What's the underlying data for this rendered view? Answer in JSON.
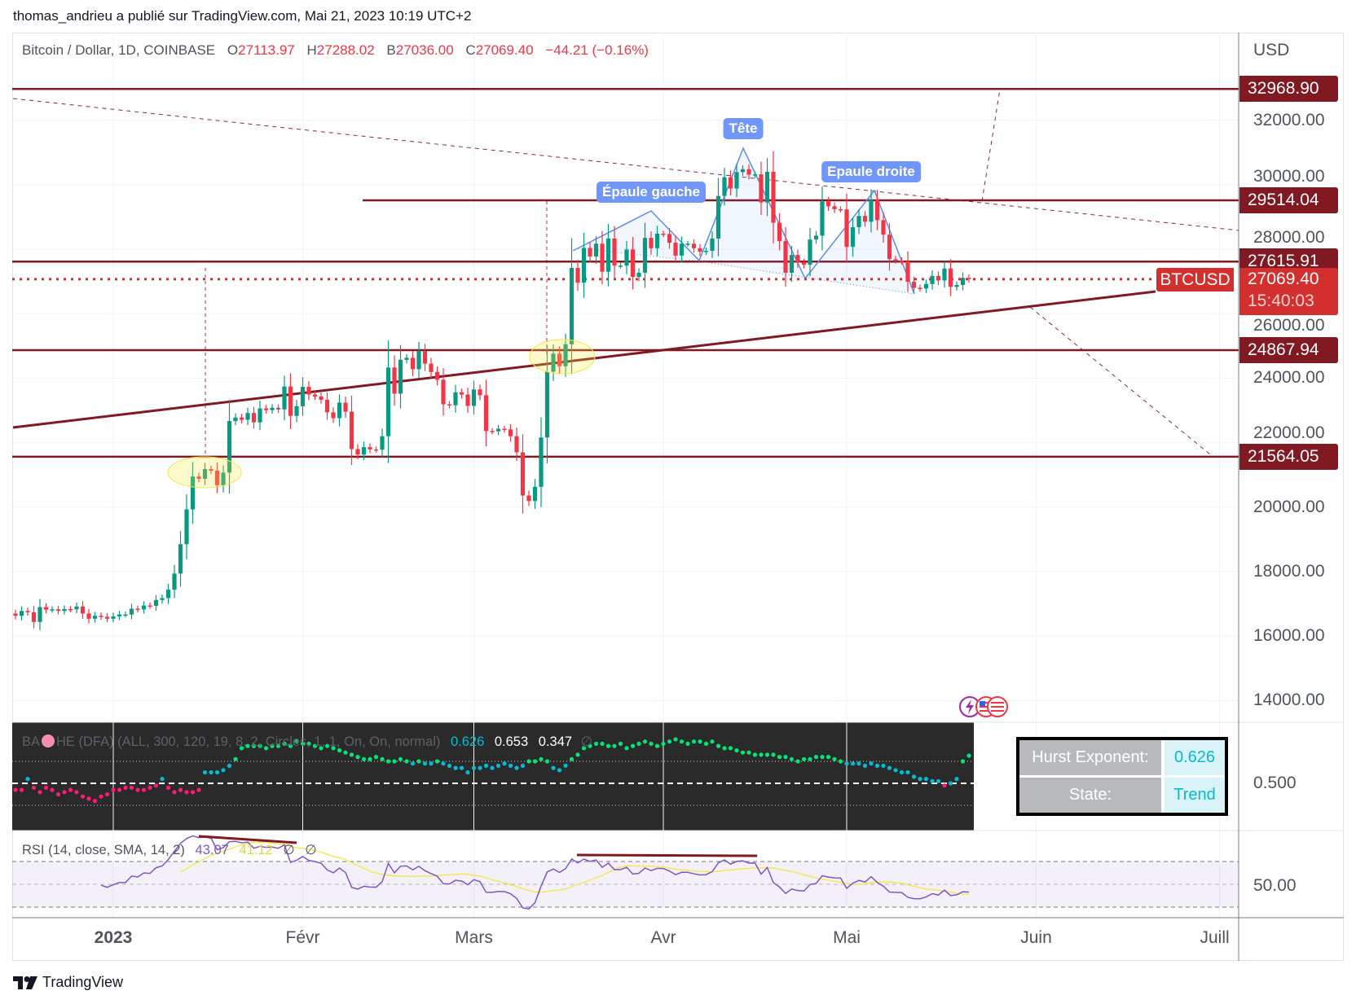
{
  "publisher": "thomas_andrieu a publié sur TradingView.com, Mai 21, 2023 10:19 UTC+2",
  "legend": {
    "symbol": "Bitcoin / Dollar, 1D, COINBASE",
    "o_label": "O",
    "o": "27113.97",
    "h_label": "H",
    "h": "27288.02",
    "b_label": "B",
    "b": "27036.00",
    "c_label": "C",
    "c": "27069.40",
    "change": "−44.21 (−0.16%)"
  },
  "currency": "USD",
  "colors": {
    "up": "#089981",
    "down": "#f23645",
    "level": "#801922",
    "pattern": "#5b8def",
    "current": "#d32f2f",
    "hurst_low": "#ff1a75",
    "hurst_mid": "#00bcd4",
    "hurst_high": "#00e676",
    "rsi": "#7e57c2",
    "rsi_sma": "#f5e642"
  },
  "price_axis": {
    "ticks": [
      "14000.00",
      "16000.00",
      "18000.00",
      "20000.00",
      "22000.00",
      "24000.00",
      "26000.00",
      "28000.00",
      "30000.00",
      "32000.00"
    ]
  },
  "levels": [
    {
      "label": "32968.90",
      "value": 32968.9
    },
    {
      "label": "29514.04",
      "value": 29514.04
    },
    {
      "label": "27615.91",
      "value": 27615.91
    },
    {
      "label": "24867.94",
      "value": 24867.94
    },
    {
      "label": "21564.05",
      "value": 21564.05
    }
  ],
  "current": {
    "symbol": "BTCUSD",
    "price": "27069.40",
    "value": 27069.4,
    "countdown": "15:40:03"
  },
  "pattern_labels": {
    "head": "Tête",
    "left_shoulder": "Épaule gauche",
    "right_shoulder": "Epaule droite"
  },
  "time_axis": [
    {
      "label": "2023",
      "date": "2023-01-01"
    },
    {
      "label": "Févr",
      "date": "2023-02-01"
    },
    {
      "label": "Mars",
      "date": "2023-03-01"
    },
    {
      "label": "Avr",
      "date": "2023-04-01"
    },
    {
      "label": "Mai",
      "date": "2023-05-01"
    },
    {
      "label": "Juin",
      "date": "2023-06-01"
    },
    {
      "label": "Juill",
      "date": "2023-07-01"
    }
  ],
  "hurst": {
    "legend_prefix": "BA",
    "legend_suffix": "HE (DFA) (ALL, 300, 120, 19, 8, 2, Circles, 1, 1, On, On, normal)",
    "v1": "0.626",
    "v2": "0.653",
    "v3": "0.347",
    "v4": "∅",
    "axis_label": "0.500",
    "table": {
      "key1": "Hurst Exponent:",
      "val1": "0.626",
      "key2": "State:",
      "val2": "Trend"
    }
  },
  "rsi": {
    "legend": "RSI (14, close, SMA, 14, 2)",
    "value": "43.07",
    "sma": "41.12",
    "z1": "∅",
    "z2": "∅",
    "axis_label": "50.00"
  },
  "brand": "TradingView",
  "chart_data": {
    "type": "candlestick",
    "symbol": "Bitcoin / Dollar, 1D, COINBASE",
    "start_date": "2022-12-16",
    "ylim": [
      13000,
      34000
    ],
    "close": [
      16630,
      16780,
      16740,
      16440,
      16900,
      16820,
      16830,
      16780,
      16840,
      16830,
      16920,
      16700,
      16540,
      16630,
      16600,
      16540,
      16610,
      16670,
      16670,
      16850,
      16830,
      16950,
      16940,
      17120,
      17180,
      17440,
      17940,
      18850,
      19930,
      20950,
      20880,
      21180,
      21130,
      20680,
      21070,
      22670,
      22780,
      22710,
      22920,
      22630,
      23060,
      23010,
      23080,
      23030,
      23740,
      22830,
      23130,
      23730,
      23490,
      23430,
      23330,
      22940,
      22760,
      23240,
      22960,
      21800,
      21630,
      21860,
      21790,
      21780,
      22200,
      24330,
      23520,
      24570,
      24630,
      24280,
      24840,
      24450,
      24190,
      23950,
      23190,
      23160,
      23560,
      23490,
      23140,
      23650,
      23470,
      22360,
      22350,
      22430,
      22410,
      22200,
      21700,
      20360,
      20190,
      20630,
      22160,
      24200,
      24760,
      24370,
      25050,
      27420,
      26960,
      28040,
      27770,
      28170,
      27300,
      28330,
      27490,
      27490,
      27990,
      27140,
      27270,
      28350,
      28030,
      28480,
      28470,
      28200,
      27800,
      28170,
      28170,
      28030,
      27920,
      27950,
      28330,
      29650,
      30230,
      29880,
      30390,
      30480,
      30310,
      30320,
      29450,
      30400,
      28820,
      28250,
      27270,
      27820,
      27590,
      27520,
      28300,
      28420,
      29480,
      29330,
      29240,
      29230,
      28070,
      28680,
      29030,
      28850,
      29530,
      28900,
      28450,
      27690,
      27650,
      27620,
      26990,
      26800,
      26780,
      26920,
      27170,
      27030,
      27400,
      26830,
      26890,
      27110,
      27069.4
    ],
    "hurst": [
      0.47,
      0.47,
      0.52,
      0.48,
      0.46,
      0.48,
      0.47,
      0.45,
      0.46,
      0.47,
      0.46,
      0.44,
      0.43,
      0.42,
      0.44,
      0.45,
      0.47,
      0.47,
      0.48,
      0.48,
      0.47,
      0.47,
      0.48,
      0.49,
      0.52,
      0.48,
      0.46,
      0.47,
      0.46,
      0.46,
      0.47,
      0.55,
      0.55,
      0.55,
      0.56,
      0.58,
      0.61,
      0.66,
      0.67,
      0.67,
      0.67,
      0.66,
      0.67,
      0.67,
      0.68,
      0.67,
      0.69,
      0.68,
      0.68,
      0.67,
      0.66,
      0.67,
      0.66,
      0.65,
      0.64,
      0.63,
      0.62,
      0.61,
      0.61,
      0.62,
      0.61,
      0.6,
      0.6,
      0.61,
      0.6,
      0.59,
      0.6,
      0.59,
      0.59,
      0.6,
      0.59,
      0.58,
      0.57,
      0.57,
      0.55,
      0.57,
      0.57,
      0.58,
      0.57,
      0.58,
      0.59,
      0.58,
      0.57,
      0.58,
      0.6,
      0.6,
      0.61,
      0.6,
      0.57,
      0.56,
      0.58,
      0.61,
      0.63,
      0.66,
      0.67,
      0.68,
      0.68,
      0.67,
      0.67,
      0.68,
      0.66,
      0.67,
      0.68,
      0.69,
      0.68,
      0.67,
      0.68,
      0.69,
      0.7,
      0.69,
      0.68,
      0.69,
      0.69,
      0.68,
      0.69,
      0.67,
      0.66,
      0.66,
      0.65,
      0.64,
      0.64,
      0.63,
      0.63,
      0.63,
      0.63,
      0.62,
      0.62,
      0.61,
      0.6,
      0.61,
      0.61,
      0.62,
      0.62,
      0.62,
      0.61,
      0.6,
      0.59,
      0.59,
      0.59,
      0.58,
      0.59,
      0.58,
      0.58,
      0.57,
      0.56,
      0.55,
      0.55,
      0.53,
      0.52,
      0.52,
      0.51,
      0.51,
      0.49,
      0.5,
      0.52,
      0.6,
      0.626
    ]
  }
}
